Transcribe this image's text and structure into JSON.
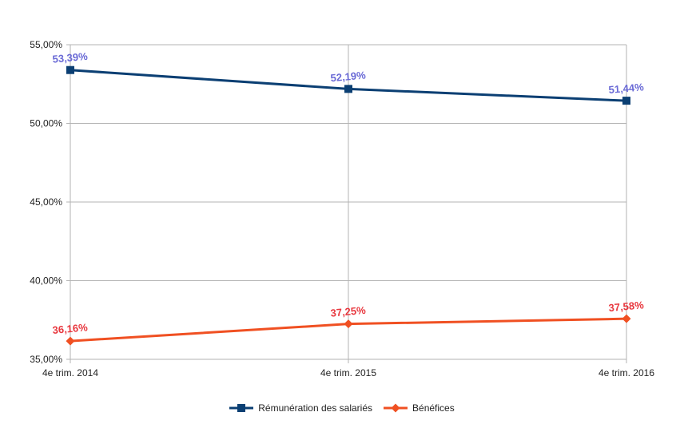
{
  "chart_data": {
    "type": "line",
    "categories": [
      "4e trim. 2014",
      "4e trim. 2015",
      "4e trim. 2016"
    ],
    "y_ticks": [
      "35,00%",
      "40,00%",
      "45,00%",
      "50,00%",
      "55,00%"
    ],
    "ylim": [
      35,
      55
    ],
    "grid": true,
    "legend_position": "bottom",
    "series": [
      {
        "name": "Rémunération des salariés",
        "values": [
          53.39,
          52.19,
          51.44
        ],
        "labels": [
          "53,39%",
          "52,19%",
          "51,44%"
        ],
        "color": "#0b3f73",
        "label_color": "#6a6ad6",
        "marker": "square"
      },
      {
        "name": "Bénéfices",
        "values": [
          36.16,
          37.25,
          37.58
        ],
        "labels": [
          "36,16%",
          "37,25%",
          "37,58%"
        ],
        "color": "#f05022",
        "label_color": "#e8383f",
        "marker": "diamond"
      }
    ]
  }
}
